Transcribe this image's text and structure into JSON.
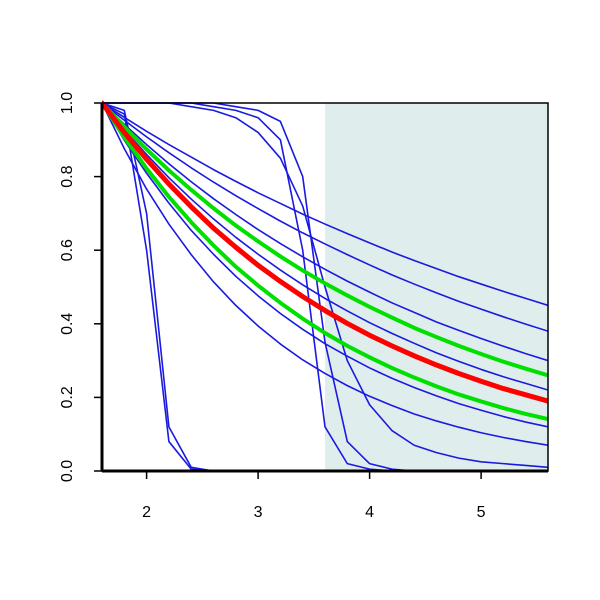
{
  "chart_data": {
    "type": "line",
    "x": [
      1.6,
      1.8,
      2.0,
      2.2,
      2.4,
      2.6,
      2.8,
      3.0,
      3.2,
      3.4,
      3.6,
      3.8,
      4.0,
      4.2,
      4.4,
      4.6,
      4.8,
      5.0,
      5.2,
      5.4,
      5.6
    ],
    "xlim": [
      1.6,
      5.6
    ],
    "ylim": [
      0,
      1
    ],
    "xticks": [
      2,
      3,
      4,
      5
    ],
    "yticks": [
      {
        "value": 0,
        "label": "0.0"
      },
      {
        "value": 0.2,
        "label": "0.2"
      },
      {
        "value": 0.4,
        "label": "0.4"
      },
      {
        "value": 0.6,
        "label": "0.6"
      },
      {
        "value": 0.8,
        "label": "0.8"
      },
      {
        "value": 1,
        "label": "1.0"
      }
    ],
    "shaded_x": [
      3.6,
      5.6
    ],
    "shade_color": "#e0eded",
    "series": [
      {
        "color": "#1a1ae0",
        "width": 1.6,
        "values": [
          1,
          0.961,
          0.923,
          0.887,
          0.853,
          0.819,
          0.787,
          0.756,
          0.727,
          0.698,
          0.671,
          0.645,
          0.62,
          0.595,
          0.572,
          0.55,
          0.528,
          0.508,
          0.488,
          0.469,
          0.45
        ]
      },
      {
        "color": "#1a1ae0",
        "width": 1.6,
        "values": [
          1,
          0.953,
          0.908,
          0.865,
          0.824,
          0.785,
          0.748,
          0.713,
          0.679,
          0.647,
          0.617,
          0.588,
          0.56,
          0.533,
          0.508,
          0.484,
          0.461,
          0.44,
          0.419,
          0.399,
          0.38
        ]
      },
      {
        "color": "#1a1ae0",
        "width": 1.6,
        "values": [
          1,
          0.942,
          0.887,
          0.835,
          0.786,
          0.74,
          0.697,
          0.656,
          0.618,
          0.582,
          0.548,
          0.516,
          0.486,
          0.457,
          0.431,
          0.405,
          0.382,
          0.36,
          0.339,
          0.319,
          0.3
        ]
      },
      {
        "color": "#1a1ae0",
        "width": 1.6,
        "values": [
          1,
          0.927,
          0.86,
          0.797,
          0.739,
          0.685,
          0.635,
          0.589,
          0.546,
          0.506,
          0.469,
          0.435,
          0.403,
          0.374,
          0.347,
          0.321,
          0.298,
          0.276,
          0.256,
          0.238,
          0.22
        ]
      },
      {
        "color": "#1a1ae0",
        "width": 1.6,
        "values": [
          1,
          0.899,
          0.809,
          0.728,
          0.654,
          0.589,
          0.529,
          0.476,
          0.428,
          0.385,
          0.346,
          0.312,
          0.28,
          0.252,
          0.227,
          0.204,
          0.183,
          0.165,
          0.148,
          0.133,
          0.12
        ]
      },
      {
        "color": "#1a1ae0",
        "width": 1.6,
        "values": [
          1,
          0.876,
          0.766,
          0.671,
          0.588,
          0.514,
          0.45,
          0.394,
          0.345,
          0.302,
          0.265,
          0.232,
          0.203,
          0.178,
          0.155,
          0.136,
          0.119,
          0.104,
          0.091,
          0.08,
          0.07
        ]
      },
      {
        "color": "#1a1ae0",
        "width": 1.6,
        "values": [
          1,
          0.98,
          0.7,
          0.12,
          0.01,
          0,
          0,
          0,
          0,
          0,
          0,
          0,
          0,
          0,
          0,
          0,
          0,
          0,
          0,
          0,
          0
        ]
      },
      {
        "color": "#1a1ae0",
        "width": 1.6,
        "values": [
          1,
          0.97,
          0.6,
          0.08,
          0.005,
          0,
          0,
          0,
          0,
          0,
          0,
          0,
          0,
          0,
          0,
          0,
          0,
          0,
          0,
          0,
          0
        ]
      },
      {
        "color": "#1a1ae0",
        "width": 1.6,
        "values": [
          1,
          1,
          1,
          1,
          1,
          0.99,
          0.98,
          0.96,
          0.9,
          0.6,
          0.12,
          0.02,
          0.005,
          0,
          0,
          0,
          0,
          0,
          0,
          0,
          0
        ]
      },
      {
        "color": "#1a1ae0",
        "width": 1.6,
        "values": [
          1,
          1,
          1,
          1,
          0.99,
          0.98,
          0.96,
          0.92,
          0.85,
          0.72,
          0.5,
          0.3,
          0.18,
          0.11,
          0.07,
          0.05,
          0.035,
          0.025,
          0.02,
          0.015,
          0.01
        ]
      },
      {
        "color": "#1a1ae0",
        "width": 1.6,
        "values": [
          1,
          1,
          1,
          1,
          1,
          1,
          0.99,
          0.98,
          0.95,
          0.8,
          0.35,
          0.08,
          0.02,
          0.005,
          0,
          0,
          0,
          0,
          0,
          0,
          0
        ]
      },
      {
        "color": "#00e000",
        "width": 4,
        "values": [
          1,
          0.935,
          0.874,
          0.817,
          0.764,
          0.714,
          0.667,
          0.624,
          0.583,
          0.545,
          0.51,
          0.477,
          0.446,
          0.417,
          0.389,
          0.364,
          0.34,
          0.318,
          0.297,
          0.278,
          0.26
        ]
      },
      {
        "color": "#00e000",
        "width": 4,
        "values": [
          1,
          0.907,
          0.822,
          0.745,
          0.676,
          0.613,
          0.555,
          0.504,
          0.457,
          0.414,
          0.375,
          0.34,
          0.309,
          0.28,
          0.254,
          0.23,
          0.208,
          0.189,
          0.171,
          0.155,
          0.141
        ]
      },
      {
        "color": "#ff0000",
        "width": 5,
        "values": [
          1,
          0.92,
          0.847,
          0.78,
          0.718,
          0.66,
          0.608,
          0.559,
          0.515,
          0.474,
          0.436,
          0.401,
          0.369,
          0.34,
          0.313,
          0.288,
          0.265,
          0.244,
          0.224,
          0.207,
          0.19
        ]
      }
    ]
  }
}
